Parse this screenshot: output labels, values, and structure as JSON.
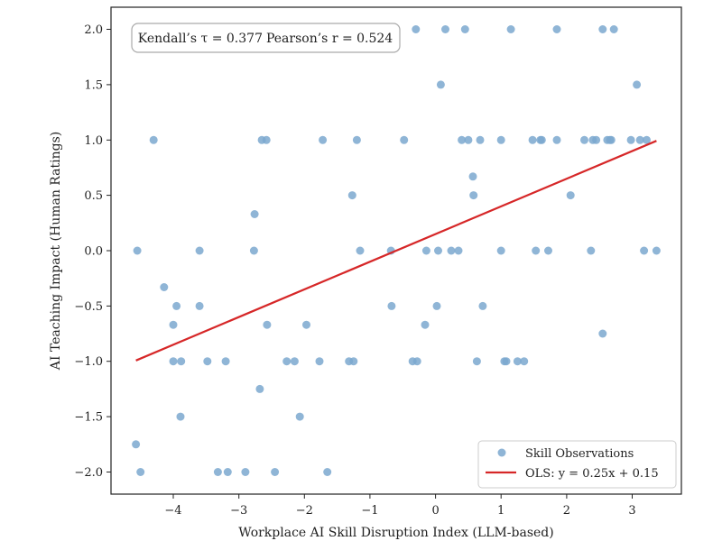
{
  "chart_data": {
    "type": "scatter",
    "title": "",
    "xlabel": "Workplace AI Skill Disruption Index (LLM-based)",
    "ylabel": "AI Teaching Impact (Human Ratings)",
    "xlim": [
      -4.95,
      3.75
    ],
    "ylim": [
      -2.2,
      2.2
    ],
    "x_ticks": [
      -4,
      -3,
      -2,
      -1,
      0,
      1,
      2,
      3
    ],
    "x_tick_labels": [
      "−4",
      "−3",
      "−2",
      "−1",
      "0",
      "1",
      "2",
      "3"
    ],
    "y_ticks": [
      2.0,
      1.5,
      1.0,
      0.5,
      0.0,
      -0.5,
      -1.0,
      -1.5,
      -2.0
    ],
    "y_tick_labels": [
      "2.0",
      "1.5",
      "1.0",
      "0.5",
      "0.0",
      "−0.5",
      "−1.0",
      "−1.5",
      "−2.0"
    ],
    "grid": false,
    "legend_position": "lower-right",
    "annotation": {
      "tau_label": "Kendall’s τ = 0.377",
      "r_label": "Pearson’s r = 0.524"
    },
    "colors": {
      "points": "#7ba8cf",
      "fit_line": "#d62728",
      "axes": "#222222"
    },
    "series": [
      {
        "name": "Skill Observations",
        "kind": "scatter",
        "points": [
          [
            -2.45,
            2.0
          ],
          [
            -0.3,
            2.0
          ],
          [
            0.15,
            2.0
          ],
          [
            0.45,
            2.0
          ],
          [
            1.15,
            2.0
          ],
          [
            1.85,
            2.0
          ],
          [
            2.55,
            2.0
          ],
          [
            2.72,
            2.0
          ],
          [
            0.08,
            1.5
          ],
          [
            3.07,
            1.5
          ],
          [
            -4.3,
            1.0
          ],
          [
            -2.65,
            1.0
          ],
          [
            -2.58,
            1.0
          ],
          [
            -1.72,
            1.0
          ],
          [
            -1.2,
            1.0
          ],
          [
            -0.48,
            1.0
          ],
          [
            0.4,
            1.0
          ],
          [
            0.5,
            1.0
          ],
          [
            0.68,
            1.0
          ],
          [
            1.0,
            1.0
          ],
          [
            1.48,
            1.0
          ],
          [
            1.6,
            1.0
          ],
          [
            1.62,
            1.0
          ],
          [
            1.85,
            1.0
          ],
          [
            2.27,
            1.0
          ],
          [
            2.4,
            1.0
          ],
          [
            2.45,
            1.0
          ],
          [
            2.62,
            1.0
          ],
          [
            2.66,
            1.0
          ],
          [
            2.68,
            1.0
          ],
          [
            2.98,
            1.0
          ],
          [
            3.12,
            1.0
          ],
          [
            3.22,
            1.0
          ],
          [
            0.57,
            0.67
          ],
          [
            -1.27,
            0.5
          ],
          [
            0.58,
            0.5
          ],
          [
            2.06,
            0.5
          ],
          [
            -2.76,
            0.33
          ],
          [
            -4.55,
            0.0
          ],
          [
            -3.6,
            0.0
          ],
          [
            -2.77,
            0.0
          ],
          [
            -1.15,
            0.0
          ],
          [
            -0.68,
            0.0
          ],
          [
            -0.14,
            0.0
          ],
          [
            0.04,
            0.0
          ],
          [
            0.24,
            0.0
          ],
          [
            0.35,
            0.0
          ],
          [
            1.0,
            0.0
          ],
          [
            1.53,
            0.0
          ],
          [
            1.72,
            0.0
          ],
          [
            2.37,
            0.0
          ],
          [
            3.18,
            0.0
          ],
          [
            3.37,
            0.0
          ],
          [
            -4.14,
            -0.33
          ],
          [
            -3.95,
            -0.5
          ],
          [
            -3.6,
            -0.5
          ],
          [
            -0.67,
            -0.5
          ],
          [
            0.02,
            -0.5
          ],
          [
            0.72,
            -0.5
          ],
          [
            -4.0,
            -0.67
          ],
          [
            -2.57,
            -0.67
          ],
          [
            -1.97,
            -0.67
          ],
          [
            -0.16,
            -0.67
          ],
          [
            2.55,
            -0.75
          ],
          [
            -4.0,
            -1.0
          ],
          [
            -3.88,
            -1.0
          ],
          [
            -3.48,
            -1.0
          ],
          [
            -3.2,
            -1.0
          ],
          [
            -2.27,
            -1.0
          ],
          [
            -2.15,
            -1.0
          ],
          [
            -1.77,
            -1.0
          ],
          [
            -1.32,
            -1.0
          ],
          [
            -1.25,
            -1.0
          ],
          [
            -0.35,
            -1.0
          ],
          [
            -0.28,
            -1.0
          ],
          [
            0.63,
            -1.0
          ],
          [
            1.05,
            -1.0
          ],
          [
            1.08,
            -1.0
          ],
          [
            1.25,
            -1.0
          ],
          [
            1.35,
            -1.0
          ],
          [
            -2.68,
            -1.25
          ],
          [
            -3.89,
            -1.5
          ],
          [
            -2.07,
            -1.5
          ],
          [
            -4.57,
            -1.75
          ],
          [
            -4.5,
            -2.0
          ],
          [
            -3.32,
            -2.0
          ],
          [
            -3.17,
            -2.0
          ],
          [
            -2.9,
            -2.0
          ],
          [
            -2.45,
            -2.0
          ],
          [
            -1.65,
            -2.0
          ]
        ]
      },
      {
        "name": "OLS: y = 0.25x + 0.15",
        "kind": "line",
        "slope": 0.25,
        "intercept": 0.15,
        "x_range": [
          -4.57,
          3.37
        ]
      }
    ]
  }
}
